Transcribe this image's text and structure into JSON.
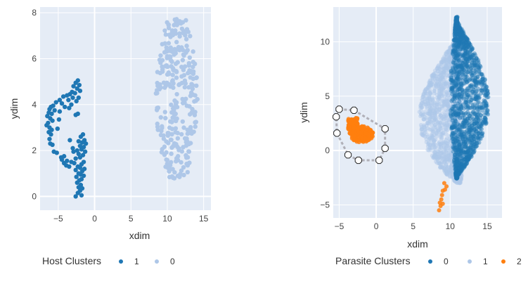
{
  "chart_data": [
    {
      "type": "scatter",
      "xlabel": "xdim",
      "ylabel": "ydim",
      "xlim": [
        -7.5,
        16
      ],
      "ylim": [
        -0.6,
        8.25
      ],
      "xticks": [
        -5,
        0,
        5,
        10,
        15
      ],
      "yticks": [
        0,
        2,
        4,
        6,
        8
      ],
      "xtick_labels": [
        "−5",
        "0",
        "5",
        "10",
        "15"
      ],
      "ytick_labels": [
        "0",
        "2",
        "4",
        "6",
        "8"
      ],
      "legend_title": "Host Clusters",
      "legend_placement": "bottom",
      "grid": true,
      "series": [
        {
          "name": "1",
          "color": "#1f77b4",
          "points": [
            [
              -2.3,
              5.05
            ],
            [
              -2.6,
              4.95
            ],
            [
              -2.1,
              4.85
            ],
            [
              -2.9,
              4.8
            ],
            [
              -2.4,
              4.7
            ],
            [
              -2.0,
              4.6
            ],
            [
              -3.1,
              4.55
            ],
            [
              -2.7,
              4.5
            ],
            [
              -3.4,
              4.45
            ],
            [
              -3.8,
              4.4
            ],
            [
              -4.3,
              4.35
            ],
            [
              -2.2,
              4.3
            ],
            [
              -3.0,
              4.3
            ],
            [
              -4.8,
              4.2
            ],
            [
              -3.6,
              4.2
            ],
            [
              -2.5,
              4.15
            ],
            [
              -5.3,
              4.1
            ],
            [
              -4.5,
              4.05
            ],
            [
              -3.2,
              4.0
            ],
            [
              -5.7,
              3.95
            ],
            [
              -6.0,
              3.9
            ],
            [
              -4.1,
              3.9
            ],
            [
              -3.5,
              3.85
            ],
            [
              -6.2,
              3.8
            ],
            [
              -5.5,
              3.75
            ],
            [
              -4.8,
              3.7
            ],
            [
              -6.3,
              3.65
            ],
            [
              -5.9,
              3.6
            ],
            [
              -2.3,
              3.6
            ],
            [
              -2.6,
              3.55
            ],
            [
              -6.5,
              3.5
            ],
            [
              -6.1,
              3.4
            ],
            [
              -5.8,
              3.3
            ],
            [
              -6.4,
              3.2
            ],
            [
              -6.6,
              3.1
            ],
            [
              -6.2,
              3.0
            ],
            [
              -5.9,
              2.9
            ],
            [
              -6.3,
              2.8
            ],
            [
              -6.0,
              2.7
            ],
            [
              -1.6,
              2.7
            ],
            [
              -1.9,
              2.6
            ],
            [
              -6.2,
              2.5
            ],
            [
              -1.4,
              2.45
            ],
            [
              -2.2,
              2.4
            ],
            [
              -1.7,
              2.35
            ],
            [
              -1.2,
              2.3
            ],
            [
              -6.1,
              2.3
            ],
            [
              -5.8,
              2.25
            ],
            [
              -2.0,
              2.2
            ],
            [
              -1.5,
              2.15
            ],
            [
              -3.0,
              2.1
            ],
            [
              -1.8,
              2.05
            ],
            [
              -2.4,
              2.0
            ],
            [
              -1.3,
              1.95
            ],
            [
              -5.6,
              1.95
            ],
            [
              -5.2,
              1.9
            ],
            [
              -2.2,
              1.85
            ],
            [
              -1.6,
              1.8
            ],
            [
              -4.2,
              1.75
            ],
            [
              -2.0,
              1.7
            ],
            [
              -4.6,
              1.7
            ],
            [
              -2.6,
              1.65
            ],
            [
              -4.5,
              1.6
            ],
            [
              -3.8,
              1.55
            ],
            [
              -1.5,
              1.5
            ],
            [
              -3.2,
              1.5
            ],
            [
              -4.2,
              1.45
            ],
            [
              -2.8,
              1.45
            ],
            [
              -1.8,
              1.4
            ],
            [
              -3.9,
              1.35
            ],
            [
              -2.3,
              1.3
            ],
            [
              -3.5,
              1.3
            ],
            [
              -2.0,
              1.25
            ],
            [
              -1.4,
              1.2
            ],
            [
              -2.6,
              1.15
            ],
            [
              -1.7,
              1.1
            ],
            [
              -2.2,
              1.0
            ],
            [
              -1.9,
              0.95
            ],
            [
              -1.5,
              0.9
            ],
            [
              -2.5,
              0.85
            ],
            [
              -1.8,
              0.75
            ],
            [
              -2.1,
              0.7
            ],
            [
              -2.4,
              0.6
            ],
            [
              -1.9,
              0.5
            ],
            [
              -2.2,
              0.4
            ],
            [
              -1.7,
              0.35
            ],
            [
              -2.0,
              0.25
            ],
            [
              -2.3,
              0.15
            ],
            [
              -1.8,
              0.05
            ],
            [
              -2.6,
              0.0
            ],
            [
              -3.4,
              2.45
            ],
            [
              -2.9,
              1.95
            ],
            [
              -4.9,
              3.35
            ],
            [
              -5.1,
              2.95
            ]
          ]
        },
        {
          "name": "0",
          "color": "#aec7e8",
          "cluster": {
            "x_range": [
              8.2,
              14.2
            ],
            "y_range": [
              0.75,
              7.75
            ],
            "center_x": 11.3,
            "count": 300
          }
        }
      ]
    },
    {
      "type": "scatter",
      "xlabel": "xdim",
      "ylabel": "ydim",
      "xlim": [
        -5.8,
        17
      ],
      "ylim": [
        -6.2,
        13.2
      ],
      "xticks": [
        -5,
        0,
        5,
        10,
        15
      ],
      "yticks": [
        -5,
        0,
        5,
        10
      ],
      "xtick_labels": [
        "−5",
        "0",
        "5",
        "10",
        "15"
      ],
      "ytick_labels": [
        "−5",
        "0",
        "5",
        "10"
      ],
      "legend_title": "Parasite Clusters",
      "legend_placement": "bottom",
      "grid": true,
      "series": [
        {
          "name": "0",
          "color": "#1f77b4",
          "cluster": {
            "x_range": [
              10.0,
              15.2
            ],
            "y_range": [
              -2.6,
              12.3
            ],
            "count": 1400
          }
        },
        {
          "name": "1",
          "color": "#aec7e8",
          "cluster": {
            "x_range": [
              5.5,
              11.5
            ],
            "y_range": [
              -3.0,
              10.5
            ],
            "count": 1400
          }
        },
        {
          "name": "2",
          "color": "#ff7f0e",
          "cluster": {
            "x_range": [
              -4.3,
              -0.3
            ],
            "y_range": [
              0.5,
              3.2
            ],
            "count": 260
          },
          "tail": [
            [
              9.2,
              -3.0
            ],
            [
              9.5,
              -3.3
            ],
            [
              9.0,
              -3.7
            ],
            [
              8.9,
              -4.1
            ],
            [
              8.8,
              -4.5
            ],
            [
              8.6,
              -4.8
            ],
            [
              8.7,
              -5.1
            ],
            [
              8.5,
              -5.5
            ],
            [
              9.3,
              -3.6
            ],
            [
              9.0,
              -4.9
            ]
          ]
        }
      ],
      "lasso_polygon": [
        [
          -5.0,
          3.8
        ],
        [
          -3.0,
          3.7
        ],
        [
          1.2,
          2.0
        ],
        [
          1.2,
          0.2
        ],
        [
          0.4,
          -0.9
        ],
        [
          -2.4,
          -0.9
        ],
        [
          -3.8,
          -0.4
        ],
        [
          -5.3,
          1.6
        ],
        [
          -5.4,
          3.1
        ]
      ]
    }
  ]
}
